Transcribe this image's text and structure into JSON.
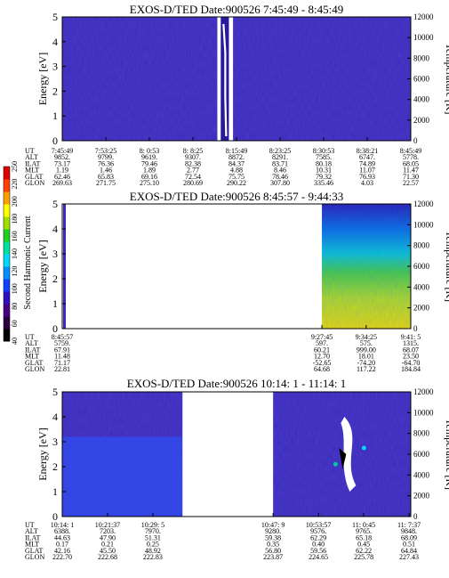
{
  "chart_data": [
    {
      "type": "heatmap",
      "title": "EXOS-D/TED   Date:900526  7:45:49 - 8:45:49",
      "ylabel": "Energy [eV]",
      "ylabel_right": "Temperature [K]",
      "ylim": [
        0,
        5
      ],
      "yticks": [
        "0",
        "1",
        "2",
        "3",
        "4",
        "5"
      ],
      "yticks_right": [
        "0",
        "2000",
        "4000",
        "6000",
        "8000",
        "10000",
        "12000"
      ],
      "ylim_right": [
        0,
        12000
      ],
      "background": "#3a2ab8",
      "gaps": [
        [
          0.445,
          0.455
        ],
        [
          0.478,
          0.49
        ]
      ],
      "event": {
        "x0": 0.455,
        "x1": 0.478,
        "kind": "streak"
      },
      "row_labels": [
        "UT",
        "ALT",
        "ILAT",
        "MLT",
        "GLAT",
        "GLON"
      ],
      "columns": [
        [
          "7:45:49",
          "9852.",
          "73.17",
          "1.19",
          "62.46",
          "269.63"
        ],
        [
          "7:53:25",
          "9799.",
          "76.36",
          "1.46",
          "65.83",
          "271.75"
        ],
        [
          "8: 0:53",
          "9619.",
          "79.46",
          "1.89",
          "69.16",
          "275.10"
        ],
        [
          "8: 8:25",
          "9307.",
          "82.38",
          "2.77",
          "72.54",
          "280.69"
        ],
        [
          "8:15:49",
          "8872.",
          "84.37",
          "4.88",
          "75.75",
          "290.22"
        ],
        [
          "8:23:25",
          "8291.",
          "83.71",
          "8.46",
          "78.46",
          "307.80"
        ],
        [
          "8:30:53",
          "7585.",
          "80.18",
          "10.31",
          "79.32",
          "335.46"
        ],
        [
          "8:38:21",
          "6747.",
          "74.89",
          "11.07",
          "76.93",
          "4.03"
        ],
        [
          "8:45:49",
          "5778.",
          "68.05",
          "11.47",
          "71.30",
          "22.57"
        ]
      ]
    },
    {
      "type": "heatmap",
      "title": "EXOS-D/TED   Date:900526  8:45:57 - 9:44:33",
      "ylabel": "Energy [eV]",
      "ylabel_right": "Temperature [K]",
      "ylim": [
        0,
        5
      ],
      "yticks": [
        "0",
        "1",
        "2",
        "3",
        "4",
        "5"
      ],
      "yticks_right": [
        "0",
        "2000",
        "4000",
        "6000",
        "8000",
        "10000",
        "12000"
      ],
      "ylim_right": [
        0,
        12000
      ],
      "background": "#ffffff",
      "data_start": 0.745,
      "colorbar": {
        "label": "Second Harmonic Current",
        "min": 40,
        "max": 250,
        "ticks": [
          "40",
          "60",
          "80",
          "100",
          "120",
          "140",
          "160",
          "180",
          "200",
          "220",
          "250"
        ],
        "colors": [
          "#000000",
          "#2a0040",
          "#4a0080",
          "#3010c0",
          "#1040ff",
          "#0090ff",
          "#00d8ff",
          "#00e0a0",
          "#20d020",
          "#a0e000",
          "#ffff00",
          "#ffa000",
          "#ff4000",
          "#e00000"
        ]
      },
      "row_labels": [
        "UT",
        "ALT",
        "ILAT",
        "MLT",
        "GLAT",
        "GLON"
      ],
      "columns": [
        [
          "8:45:57",
          "5759.",
          "67.91",
          "11.48",
          "71.17",
          "22.81"
        ],
        [
          "9:27:45",
          "597.",
          "60.21",
          "12.70",
          "-52.65",
          "64.68"
        ],
        [
          "9:34:25",
          "575.",
          "999.00",
          "18.01",
          "-74.20",
          "117.22"
        ],
        [
          "9:41: 5",
          "1315.",
          "68.07",
          "23.50",
          "-64.70",
          "184.84"
        ]
      ]
    },
    {
      "type": "heatmap",
      "title": "EXOS-D/TED   Date:900526  10:14: 1 - 11:14: 1",
      "ylabel": "Energy [eV]",
      "ylabel_right": "Temperature [K]",
      "ylim": [
        0,
        5
      ],
      "yticks": [
        "0",
        "1",
        "2",
        "3",
        "4",
        "5"
      ],
      "yticks_right": [
        "0",
        "2000",
        "4000",
        "6000",
        "8000",
        "10000",
        "12000"
      ],
      "ylim_right": [
        0,
        12000
      ],
      "background": "#3a2ab8",
      "gaps": [
        [
          0.345,
          0.605
        ]
      ],
      "row_labels": [
        "UT",
        "ALT",
        "ILAT",
        "MLT",
        "GLAT",
        "GLON"
      ],
      "columns": [
        [
          "10:14: 1",
          "6388.",
          "44.63",
          "0.17",
          "42.16",
          "222.70"
        ],
        [
          "10:21:37",
          "7203.",
          "47.90",
          "0.21",
          "45.50",
          "222.68"
        ],
        [
          "10:29: 5",
          "7970.",
          "51.31",
          "0.25",
          "48.92",
          "222.83"
        ],
        [
          "10:47: 9",
          "9280.",
          "59.38",
          "0.35",
          "56.80",
          "223.87"
        ],
        [
          "10:53:57",
          "9576.",
          "62.29",
          "0.40",
          "59.56",
          "224.65"
        ],
        [
          "11: 0:45",
          "9765.",
          "65.18",
          "0.45",
          "62.22",
          "225.78"
        ],
        [
          "11: 7:37",
          "9848.",
          "68.09",
          "0.51",
          "64.84",
          "227.43"
        ]
      ]
    }
  ]
}
